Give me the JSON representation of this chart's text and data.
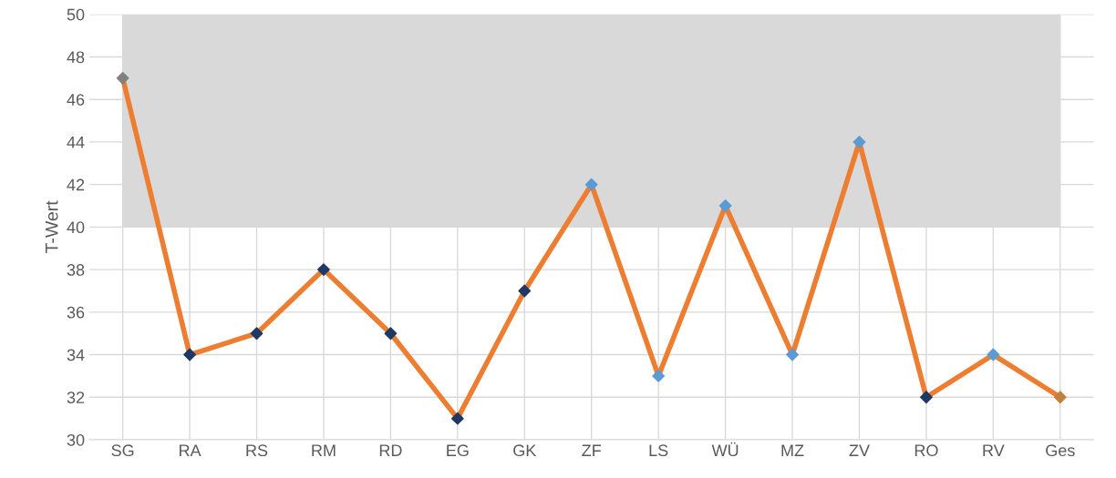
{
  "chart_data": {
    "type": "line",
    "ylabel": "T-Wert",
    "categories": [
      "SG",
      "RA",
      "RS",
      "RM",
      "RD",
      "EG",
      "GK",
      "ZF",
      "LS",
      "WÜ",
      "MZ",
      "ZV",
      "RO",
      "RV",
      "Ges"
    ],
    "series": [
      {
        "color": "#ed7d31",
        "values": [
          47,
          34,
          35,
          38,
          35,
          31,
          37,
          42,
          33,
          41,
          34,
          44,
          32,
          34,
          32
        ],
        "colors": [
          "#808080",
          "#1f3864",
          "#1f3864",
          "#1f3864",
          "#1f3864",
          "#1f3864",
          "#1f3864",
          "#5b9bd5",
          "#5b9bd5",
          "#5b9bd5",
          "#5b9bd5",
          "#5b9bd5",
          "#1f3864",
          "#5b9bd5",
          "#c0803f"
        ]
      }
    ],
    "bands": [
      {
        "axis": "y",
        "from": 40,
        "to": 50,
        "color": "#d9d9d9"
      }
    ],
    "ylim": [
      30,
      50
    ],
    "yticks": [
      30,
      32,
      34,
      36,
      38,
      40,
      42,
      44,
      46,
      48,
      50
    ],
    "grid": true,
    "marker": "diamond",
    "line_style": "solid",
    "legend": false
  }
}
